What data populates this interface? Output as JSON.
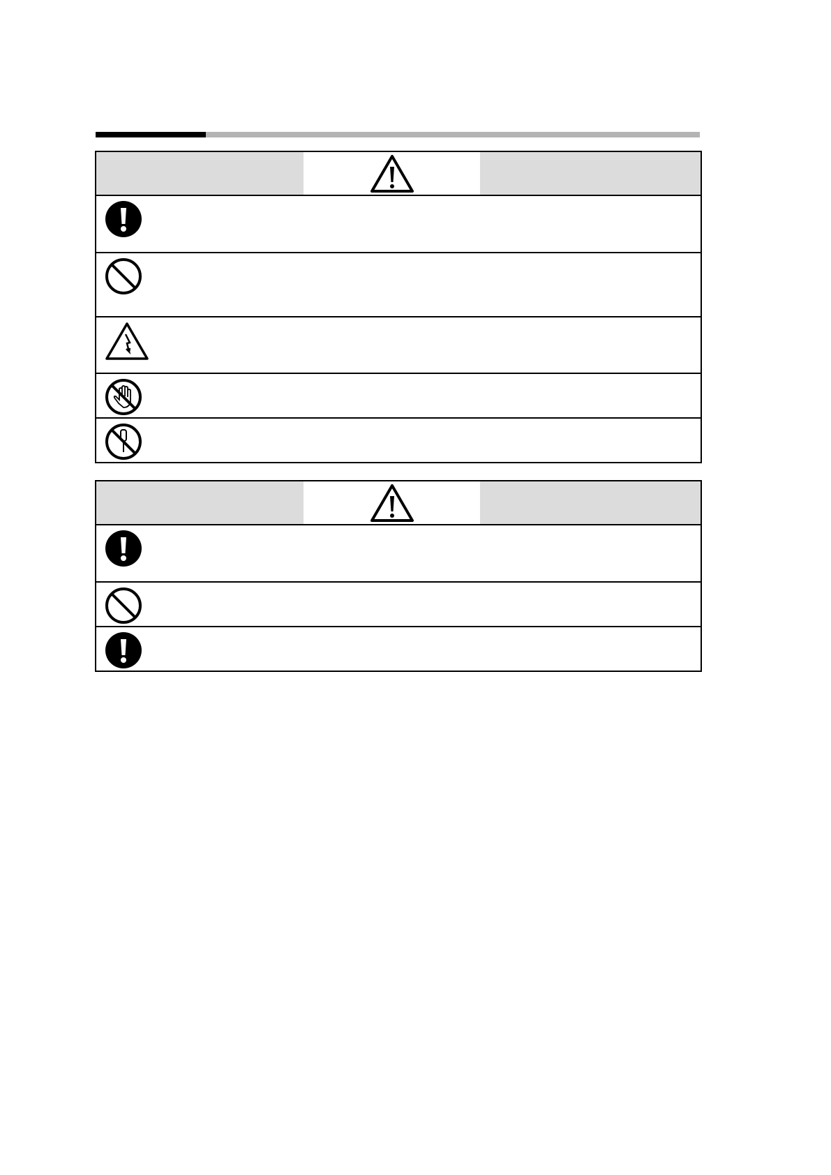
{
  "colors": {
    "header_bg": "#dcdcdc",
    "rule_black": "#000000",
    "rule_grey": "#b4b4b4"
  },
  "tables": [
    {
      "header_icon": "warning-triangle-icon",
      "rows": [
        {
          "icon": "mandatory-exclamation-icon"
        },
        {
          "icon": "prohibition-icon"
        },
        {
          "icon": "electric-shock-warning-icon"
        },
        {
          "icon": "do-not-touch-icon"
        },
        {
          "icon": "do-not-disassemble-icon"
        }
      ]
    },
    {
      "header_icon": "caution-triangle-icon",
      "rows": [
        {
          "icon": "mandatory-exclamation-icon"
        },
        {
          "icon": "prohibition-icon"
        },
        {
          "icon": "mandatory-exclamation-icon"
        }
      ]
    }
  ]
}
